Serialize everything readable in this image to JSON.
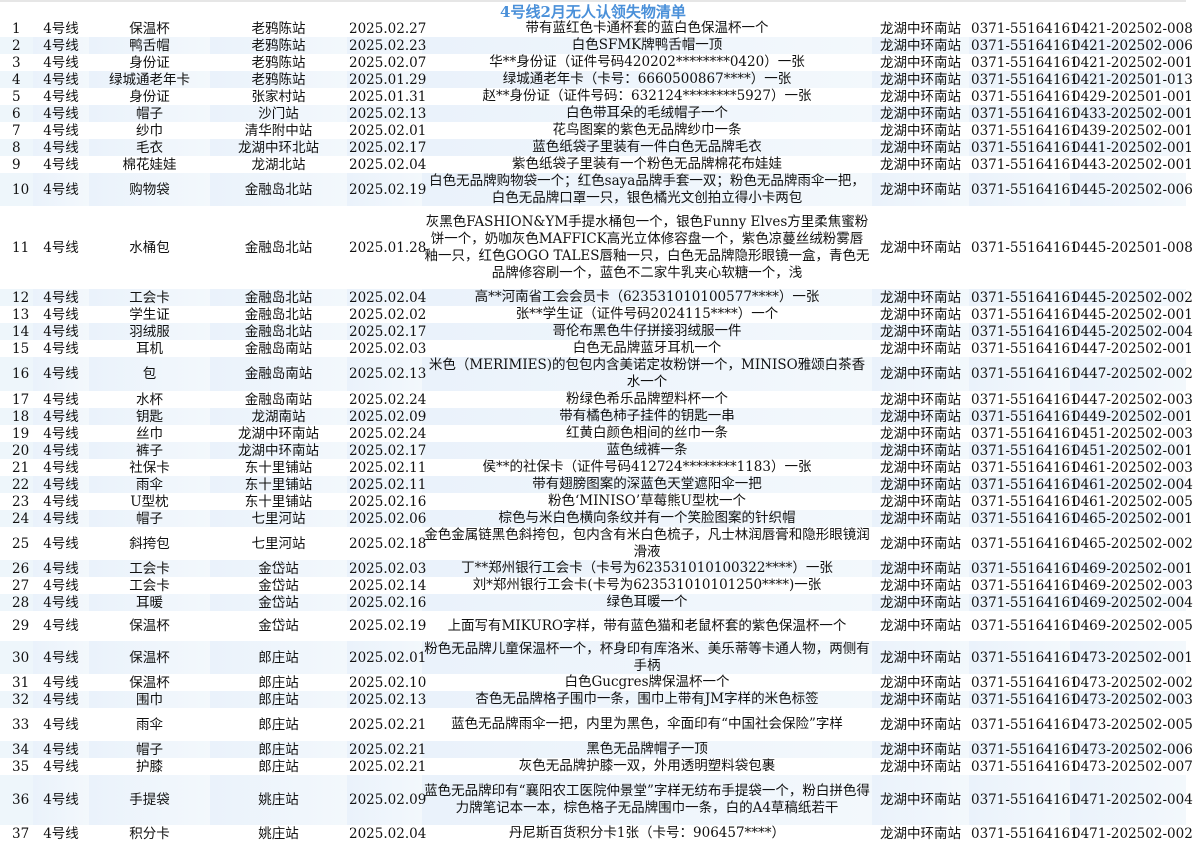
{
  "title": "4号线2月无人认领失物清单",
  "rows": [
    [
      "1",
      "4号线",
      "保温杯",
      "老鸦陈站",
      "2025.02.27",
      "带有蓝红色卡通杯套的蓝白色保温杯一个",
      "龙湖中环南站",
      "0371-55164161",
      "0421-202502-008"
    ],
    [
      "2",
      "4号线",
      "鸭舌帽",
      "老鸦陈站",
      "2025.02.23",
      "白色SFMK牌鸭舌帽一顶",
      "龙湖中环南站",
      "0371-55164161",
      "0421-202502-006"
    ],
    [
      "3",
      "4号线",
      "身份证",
      "老鸦陈站",
      "2025.02.07",
      "华**身份证（证件号码420202********0420）一张",
      "龙湖中环南站",
      "0371-55164161",
      "0421-202502-001"
    ],
    [
      "4",
      "4号线",
      "绿城通老年卡",
      "老鸦陈站",
      "2025.01.29",
      "绿城通老年卡（卡号：6660500867****）一张",
      "龙湖中环南站",
      "0371-55164161",
      "0421-202501-013"
    ],
    [
      "5",
      "4号线",
      "身份证",
      "张家村站",
      "2025.01.31",
      "赵**身份证（证件号码：632124********5927）一张",
      "龙湖中环南站",
      "0371-55164161",
      "0429-202501-001"
    ],
    [
      "6",
      "4号线",
      "帽子",
      "沙门站",
      "2025.02.13",
      "白色带耳朵的毛绒帽子一个",
      "龙湖中环南站",
      "0371-55164161",
      "0433-202502-001"
    ],
    [
      "7",
      "4号线",
      "纱巾",
      "清华附中站",
      "2025.02.01",
      "花鸟图案的紫色无品牌纱巾一条",
      "龙湖中环南站",
      "0371-55164161",
      "0439-202502-001"
    ],
    [
      "8",
      "4号线",
      "毛衣",
      "龙湖中环北站",
      "2025.02.17",
      "蓝色纸袋子里装有一件白色无品牌毛衣",
      "龙湖中环南站",
      "0371-55164161",
      "0441-202502-001"
    ],
    [
      "9",
      "4号线",
      "棉花娃娃",
      "龙湖北站",
      "2025.02.04",
      "紫色纸袋子里装有一个粉色无品牌棉花布娃娃",
      "龙湖中环南站",
      "0371-55164161",
      "0443-202502-001"
    ],
    [
      "10",
      "4号线",
      "购物袋",
      "金融岛北站",
      "2025.02.19",
      "白色无品牌购物袋一个；红色saya品牌手套一双；粉色无品牌雨伞一把，白色无品牌口罩一只，银色橘光文创拍立得小卡两包",
      "龙湖中环南站",
      "0371-55164161",
      "0445-202502-006"
    ],
    [
      "11",
      "4号线",
      "水桶包",
      "金融岛北站",
      "2025.01.28",
      "灰黑色FASHION&YM手提水桶包一个，银色Funny Elves方里柔焦蜜粉饼一个，奶咖灰色MAFFICK高光立体修容盘一个，紫色凉蔓丝绒粉雾唇釉一只，红色GOGO TALES唇釉一只，白色无品牌隐形眼镜一盒，青色无品牌修容刷一个，蓝色不二家牛乳夹心软糖一个，浅",
      "龙湖中环南站",
      "0371-55164161",
      "0445-202501-008"
    ],
    [
      "12",
      "4号线",
      "工会卡",
      "金融岛北站",
      "2025.02.04",
      "高**河南省工会会员卡（623531010100577****）一张",
      "龙湖中环南站",
      "0371-55164161",
      "0445-202502-002"
    ],
    [
      "13",
      "4号线",
      "学生证",
      "金融岛北站",
      "2025.02.02",
      "张**学生证（证件号码2024115****）一个",
      "龙湖中环南站",
      "0371-55164161",
      "0445-202502-001"
    ],
    [
      "14",
      "4号线",
      "羽绒服",
      "金融岛北站",
      "2025.02.17",
      "哥伦布黑色牛仔拼接羽绒服一件",
      "龙湖中环南站",
      "0371-55164161",
      "0445-202502-004"
    ],
    [
      "15",
      "4号线",
      "耳机",
      "金融岛南站",
      "2025.02.03",
      "白色无品牌蓝牙耳机一个",
      "龙湖中环南站",
      "0371-55164161",
      "0447-202502-001"
    ],
    [
      "16",
      "4号线",
      "包",
      "金融岛南站",
      "2025.02.13",
      "米色（MERIMIES)的包包内含美诺定妆粉饼一个，MINISO雅颂白茶香水一个",
      "龙湖中环南站",
      "0371-55164161",
      "0447-202502-002"
    ],
    [
      "17",
      "4号线",
      "水杯",
      "金融岛南站",
      "2025.02.24",
      "粉绿色希乐品牌塑料杯一个",
      "龙湖中环南站",
      "0371-55164161",
      "0447-202502-003"
    ],
    [
      "18",
      "4号线",
      "钥匙",
      "龙湖南站",
      "2025.02.09",
      "带有橘色柿子挂件的钥匙一串",
      "龙湖中环南站",
      "0371-55164161",
      "0449-202502-001"
    ],
    [
      "19",
      "4号线",
      "丝巾",
      "龙湖中环南站",
      "2025.02.24",
      "红黄白颜色相间的丝巾一条",
      "龙湖中环南站",
      "0371-55164161",
      "0451-202502-003"
    ],
    [
      "20",
      "4号线",
      "裤子",
      "龙湖中环南站",
      "2025.02.17",
      "蓝色绒裤一条",
      "龙湖中环南站",
      "0371-55164161",
      "0451-202502-001"
    ],
    [
      "21",
      "4号线",
      "社保卡",
      "东十里铺站",
      "2025.02.11",
      "侯**的社保卡（证件号码412724********1183）一张",
      "龙湖中环南站",
      "0371-55164161",
      "0461-202502-003"
    ],
    [
      "22",
      "4号线",
      "雨伞",
      "东十里铺站",
      "2025.02.11",
      "带有翅膀图案的深蓝色天堂遮阳伞一把",
      "龙湖中环南站",
      "0371-55164161",
      "0461-202502-004"
    ],
    [
      "23",
      "4号线",
      "U型枕",
      "东十里铺站",
      "2025.02.16",
      "粉色‘MINISO’草莓熊U型枕一个",
      "龙湖中环南站",
      "0371-55164161",
      "0461-202502-005"
    ],
    [
      "24",
      "4号线",
      "帽子",
      "七里河站",
      "2025.02.06",
      "棕色与米白色横向条纹并有一个笑脸图案的针织帽",
      "龙湖中环南站",
      "0371-55164161",
      "0465-202502-001"
    ],
    [
      "25",
      "4号线",
      "斜挎包",
      "七里河站",
      "2025.02.18",
      "金色金属链黑色斜挎包，包内含有米白色梳子，凡士林润唇膏和隐形眼镜润滑液",
      "龙湖中环南站",
      "0371-55164161",
      "0465-202502-002"
    ],
    [
      "26",
      "4号线",
      "工会卡",
      "金岱站",
      "2025.02.03",
      "丁**郑州银行工会卡（卡号为623531010100322****）一张",
      "龙湖中环南站",
      "0371-55164161",
      "0469-202502-001"
    ],
    [
      "27",
      "4号线",
      "工会卡",
      "金岱站",
      "2025.02.14",
      "刘*郑州银行工会卡(卡号为623531010101250****)一张",
      "龙湖中环南站",
      "0371-55164161",
      "0469-202502-003"
    ],
    [
      "28",
      "4号线",
      "耳暖",
      "金岱站",
      "2025.02.16",
      "绿色耳暖一个",
      "龙湖中环南站",
      "0371-55164161",
      "0469-202502-004"
    ],
    [
      "29",
      "4号线",
      "保温杯",
      "金岱站",
      "2025.02.19",
      "上面写有MIKURO字样，带有蓝色猫和老鼠杯套的紫色保温杯一个",
      "龙湖中环南站",
      "0371-55164161",
      "0469-202502-005"
    ],
    [
      "30",
      "4号线",
      "保温杯",
      "郎庄站",
      "2025.02.01",
      "粉色无品牌儿童保温杯一个，杯身印有库洛米、美乐蒂等卡通人物，两侧有手柄",
      "龙湖中环南站",
      "0371-55164161",
      "0473-202502-001"
    ],
    [
      "31",
      "4号线",
      "保温杯",
      "郎庄站",
      "2025.02.10",
      "白色Gucgres牌保温杯一个",
      "龙湖中环南站",
      "0371-55164161",
      "0473-202502-002"
    ],
    [
      "32",
      "4号线",
      "围巾",
      "郎庄站",
      "2025.02.13",
      "杏色无品牌格子围巾一条，围巾上带有JM字样的米色标签",
      "龙湖中环南站",
      "0371-55164161",
      "0473-202502-003"
    ],
    [
      "33",
      "4号线",
      "雨伞",
      "郎庄站",
      "2025.02.21",
      "蓝色无品牌雨伞一把，内里为黑色，伞面印有“中国社会保险”字样",
      "龙湖中环南站",
      "0371-55164161",
      "0473-202502-005"
    ],
    [
      "34",
      "4号线",
      "帽子",
      "郎庄站",
      "2025.02.21",
      "黑色无品牌帽子一顶",
      "龙湖中环南站",
      "0371-55164161",
      "0473-202502-006"
    ],
    [
      "35",
      "4号线",
      "护膝",
      "郎庄站",
      "2025.02.21",
      "灰色无品牌护膝一双，外用透明塑料袋包裹",
      "龙湖中环南站",
      "0371-55164161",
      "0473-202502-007"
    ],
    [
      "36",
      "4号线",
      "手提袋",
      "姚庄站",
      "2025.02.09",
      "蓝色无品牌印有“襄阳农工医院仲景堂”字样无纺布手提袋一个，粉白拼色得力牌笔记本一本，棕色格子无品牌围巾一条，白的A4草稿纸若干",
      "龙湖中环南站",
      "0371-55164161",
      "0471-202502-004"
    ],
    [
      "37",
      "4号线",
      "积分卡",
      "姚庄站",
      "2025.02.04",
      "丹尼斯百货积分卡1张（卡号：906457****）",
      "龙湖中环南站",
      "0371-55164161",
      "0471-202502-002"
    ]
  ]
}
